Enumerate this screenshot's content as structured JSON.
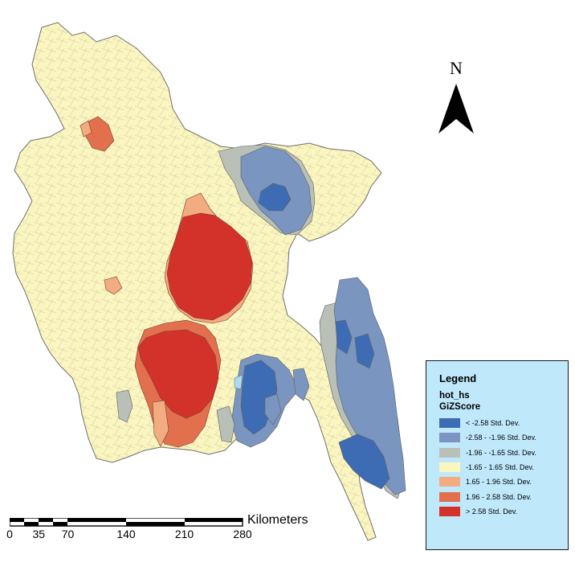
{
  "north_arrow": {
    "letter": "N",
    "icon": "north-arrow-icon"
  },
  "legend": {
    "title": "Legend",
    "layer": "hot_hs",
    "field": "GiZScore",
    "classes": [
      {
        "label": "< -2.58 Std. Dev.",
        "color": "#3d6cb5"
      },
      {
        "label": "-2.58 - -1.96 Std. Dev.",
        "color": "#7a95bf"
      },
      {
        "label": "-1.96 - -1.65 Std. Dev.",
        "color": "#b8c0b8"
      },
      {
        "label": "-1.65 - 1.65 Std. Dev.",
        "color": "#fbf6c0"
      },
      {
        "label": "1.65 - 1.96 Std. Dev.",
        "color": "#f3ac80"
      },
      {
        "label": "1.96 - 2.58 Std. Dev.",
        "color": "#e2704f"
      },
      {
        "label": "> 2.58 Std. Dev.",
        "color": "#d3322a"
      }
    ]
  },
  "scale_bar": {
    "unit": "Kilometers",
    "ticks": [
      "0",
      "35",
      "70",
      "140",
      "210",
      "280"
    ]
  }
}
